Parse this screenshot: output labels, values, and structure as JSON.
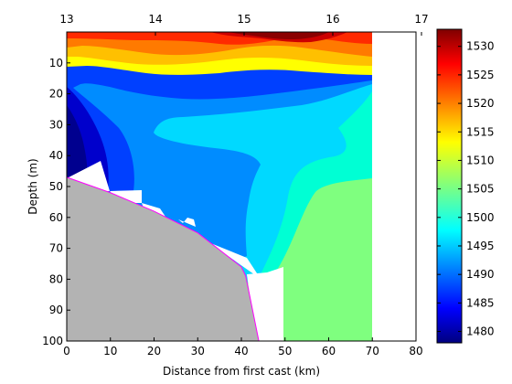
{
  "chart_data": [
    {
      "type": "heatmap",
      "subtype": "filled-contour-section",
      "title": "",
      "xlabel": "Distance from first cast (km)",
      "ylabel": "Depth (m)",
      "xlim": [
        0,
        80
      ],
      "ylim": [
        100,
        0
      ],
      "y_reversed": true,
      "x_ticks": [
        0,
        10,
        20,
        30,
        40,
        50,
        60,
        70,
        80
      ],
      "y_ticks": [
        10,
        20,
        30,
        40,
        50,
        60,
        70,
        80,
        90,
        100
      ],
      "top_axis_ticks": [
        "13",
        "14",
        "15",
        "16",
        "17"
      ],
      "data_extent_x": [
        0,
        70
      ],
      "colormap": "jet",
      "colors": {
        "bottom_fill": "#b3b3b3",
        "bottom_line": "#ff00ff"
      },
      "bottom_profile": [
        {
          "x": 0,
          "depth": 47
        },
        {
          "x": 10,
          "depth": 52
        },
        {
          "x": 20,
          "depth": 58
        },
        {
          "x": 30,
          "depth": 65
        },
        {
          "x": 40,
          "depth": 76
        },
        {
          "x": 41,
          "depth": 79
        },
        {
          "x": 44,
          "depth": 100
        }
      ],
      "cast_dropouts": [
        {
          "x": 10,
          "depth": 42
        },
        {
          "x": 20,
          "depth": 56
        },
        {
          "x": 27,
          "depth": 60
        },
        {
          "x": 35,
          "depth": 70
        },
        {
          "x": 47,
          "depth": 76
        },
        {
          "x": 50,
          "depth": 100
        }
      ],
      "contour_levels": [
        1480,
        1485,
        1490,
        1495,
        1500,
        1505,
        1510,
        1515,
        1520,
        1525,
        1530
      ],
      "regions": [
        {
          "area": "surface 0-10 m, 15-20 km",
          "value": 1530
        },
        {
          "area": "near-surface band 5-15 m",
          "value": 1520
        },
        {
          "area": "upper layer 15-20 m",
          "value": 1505
        },
        {
          "area": "mid-depth 20-30 m",
          "value": 1495
        },
        {
          "area": "mid core 30-60 m, 10-40 km",
          "value": 1488
        },
        {
          "area": "deep nearshore 10-50 m, 0-10 km",
          "value": 1482
        },
        {
          "area": "deep offshore 60-100 m, 50-70 km",
          "value": 1502
        }
      ]
    },
    {
      "type": "colorbar",
      "range": [
        1478,
        1533
      ],
      "ticks": [
        1480,
        1485,
        1490,
        1495,
        1500,
        1505,
        1510,
        1515,
        1520,
        1525,
        1530
      ]
    }
  ]
}
